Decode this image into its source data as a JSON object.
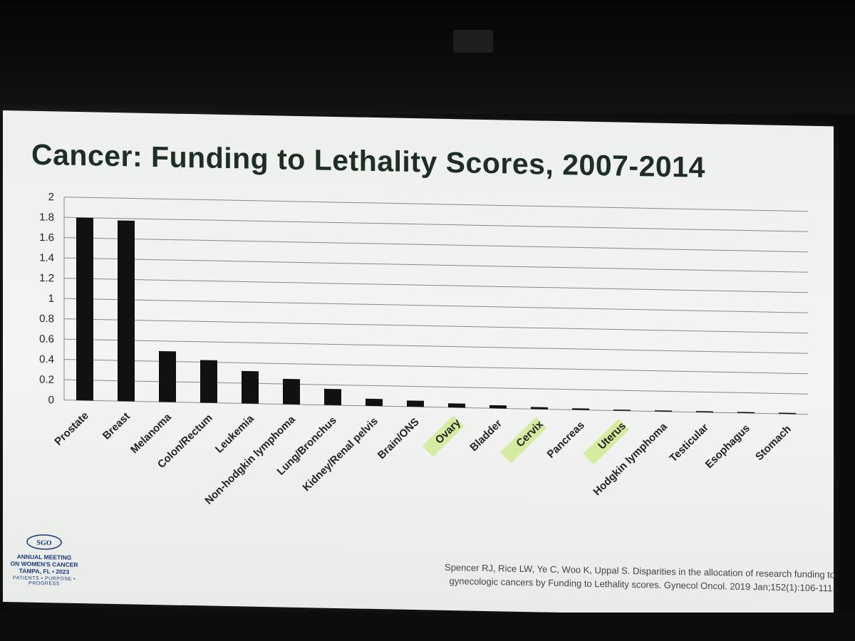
{
  "slide": {
    "title": "Cancer: Funding to Lethality Scores, 2007-2014",
    "citation_line1": "Spencer RJ, Rice LW, Ye C, Woo K, Uppal S. Disparities in the allocation of research funding to",
    "citation_line2": "gynecologic cancers by Funding to Lethality scores. Gynecol Oncol. 2019 Jan;152(1):106-111.",
    "logo": {
      "mark": "SGO",
      "line1": "ANNUAL MEETING",
      "line2": "ON WOMEN'S CANCER",
      "line3": "TAMPA, FL • 2023",
      "line4": "PATIENTS • PURPOSE • PROGRESS"
    }
  },
  "colors": {
    "bar": "#111111",
    "highlight": "#d4eba0",
    "grid": "#888888",
    "title": "#1f2e25"
  },
  "chart_data": {
    "type": "bar",
    "categories": [
      "Prostate",
      "Breast",
      "Melanoma",
      "Colon/Rectum",
      "Leukemia",
      "Non-hodgkin lymphoma",
      "Lung/Bronchus",
      "Kidney/Renal pelvis",
      "Brain/ONS",
      "Ovary",
      "Bladder",
      "Cervix",
      "Pancreas",
      "Uterus",
      "Hodgkin lymphoma",
      "Testicular",
      "Esophagus",
      "Stomach"
    ],
    "values": [
      1.8,
      1.78,
      0.5,
      0.42,
      0.32,
      0.25,
      0.16,
      0.07,
      0.06,
      0.04,
      0.03,
      0.02,
      0.015,
      0.01,
      0.008,
      0.006,
      0.003,
      0.002
    ],
    "highlighted_categories": [
      "Ovary",
      "Cervix",
      "Uterus"
    ],
    "ylim": [
      0,
      2
    ],
    "yticks": [
      "0",
      "0.2",
      "0.4",
      "0.6",
      "0.8",
      "1",
      "1.2",
      "1.4",
      "1.6",
      "1.8",
      "2"
    ],
    "grid": true,
    "legend": "none"
  }
}
